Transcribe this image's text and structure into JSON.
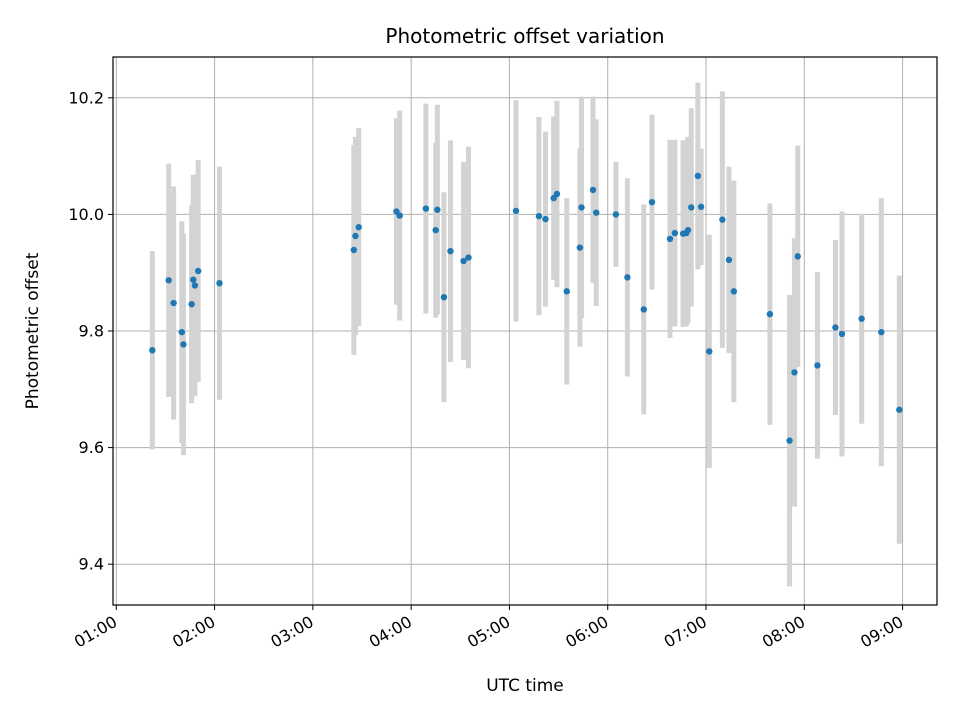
{
  "chart_data": {
    "type": "scatter",
    "title": "Photometric offset variation",
    "xlabel": "UTC time",
    "ylabel": "Photometric offset",
    "x_tick_labels": [
      "01:00",
      "02:00",
      "03:00",
      "04:00",
      "05:00",
      "06:00",
      "07:00",
      "08:00",
      "09:00"
    ],
    "y_ticks": [
      9.4,
      9.6,
      9.8,
      10.0,
      10.2
    ],
    "y_tick_labels": [
      "9.4",
      "9.6",
      "9.8",
      "10.0",
      "10.2"
    ],
    "xlim": [
      "00:58",
      "09:21"
    ],
    "ylim": [
      9.33,
      10.27
    ],
    "grid": true,
    "point_color": "#1f77b4",
    "errorbar_color": "#d3d3d3",
    "series": [
      {
        "x": [
          "01:22",
          "01:32",
          "01:35",
          "01:40",
          "01:41",
          "01:46",
          "01:47",
          "01:48",
          "01:50",
          "02:03",
          "03:25",
          "03:26",
          "03:28",
          "03:51",
          "03:53",
          "04:09",
          "04:15",
          "04:16",
          "04:20",
          "04:24",
          "04:32",
          "04:35",
          "05:04",
          "05:18",
          "05:22",
          "05:27",
          "05:29",
          "05:35",
          "05:43",
          "05:44",
          "05:51",
          "05:53",
          "06:05",
          "06:12",
          "06:22",
          "06:27",
          "06:38",
          "06:41",
          "06:46",
          "06:48",
          "06:49",
          "06:51",
          "06:55",
          "06:57",
          "07:02",
          "07:10",
          "07:14",
          "07:17",
          "07:39",
          "07:51",
          "07:54",
          "07:56",
          "08:08",
          "08:19",
          "08:23",
          "08:35",
          "08:47",
          "08:58"
        ],
        "y": [
          9.767,
          9.887,
          9.848,
          9.798,
          9.777,
          9.846,
          9.888,
          9.878,
          9.903,
          9.882,
          9.939,
          9.963,
          9.978,
          10.005,
          9.998,
          10.01,
          9.973,
          10.008,
          9.858,
          9.937,
          9.92,
          9.926,
          10.006,
          9.997,
          9.992,
          10.028,
          10.035,
          9.868,
          9.943,
          10.012,
          10.042,
          10.003,
          10.0,
          9.892,
          9.837,
          10.021,
          9.958,
          9.968,
          9.967,
          9.968,
          9.973,
          10.012,
          10.066,
          10.013,
          9.765,
          9.991,
          9.922,
          9.868,
          9.829,
          9.612,
          9.729,
          9.928,
          9.741,
          9.806,
          9.795,
          9.821,
          9.798,
          9.665
        ],
        "err": [
          0.17,
          0.2,
          0.2,
          0.19,
          0.19,
          0.17,
          0.18,
          0.19,
          0.19,
          0.2,
          0.18,
          0.17,
          0.17,
          0.16,
          0.18,
          0.18,
          0.15,
          0.18,
          0.18,
          0.19,
          0.17,
          0.19,
          0.19,
          0.17,
          0.15,
          0.14,
          0.16,
          0.16,
          0.17,
          0.19,
          0.16,
          0.16,
          0.09,
          0.17,
          0.18,
          0.15,
          0.17,
          0.16,
          0.16,
          0.16,
          0.16,
          0.17,
          0.16,
          0.1,
          0.2,
          0.22,
          0.16,
          0.19,
          0.19,
          0.25,
          0.23,
          0.19,
          0.16,
          0.15,
          0.21,
          0.18,
          0.23,
          0.23
        ]
      }
    ]
  }
}
